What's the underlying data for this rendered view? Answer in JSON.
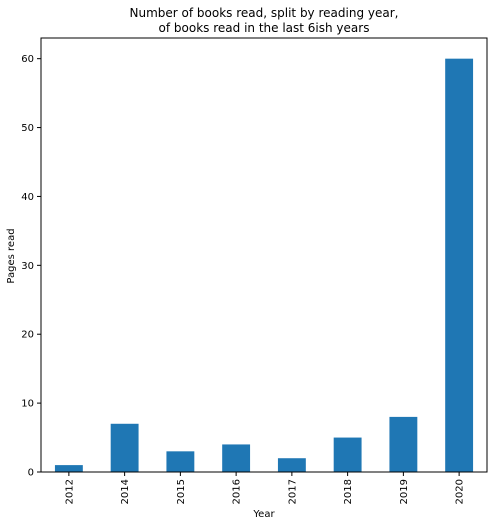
{
  "chart_data": {
    "type": "bar",
    "title_lines": [
      "Number of books read, split by reading year,",
      "of books read in the last 6ish years"
    ],
    "xlabel": "Year",
    "ylabel": "Pages read",
    "categories": [
      "2012",
      "2014",
      "2015",
      "2016",
      "2017",
      "2018",
      "2019",
      "2020"
    ],
    "values": [
      1,
      7,
      3,
      4,
      2,
      5,
      8,
      60
    ],
    "ylim": [
      0,
      63
    ],
    "yticks": [
      0,
      10,
      20,
      30,
      40,
      50,
      60
    ],
    "bar_color": "#1f77b4",
    "grid": false,
    "legend": "none"
  }
}
